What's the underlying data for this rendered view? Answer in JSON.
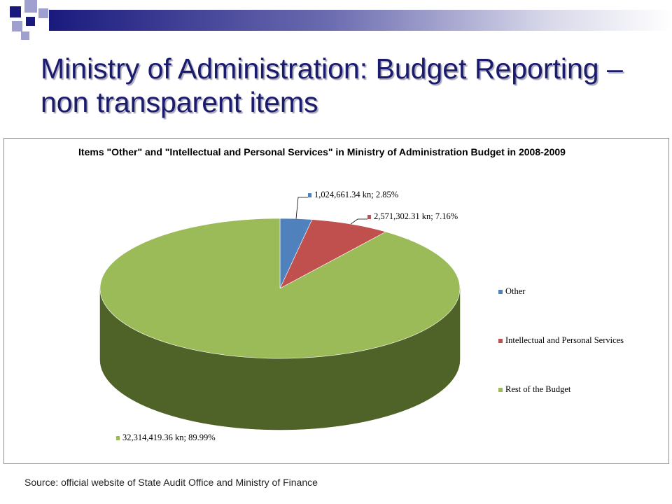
{
  "slide": {
    "title": "Ministry of Administration: Budget Reporting – non transparent items",
    "source": "Source: official website of State Audit Office and Ministry of Finance"
  },
  "colors": {
    "title": "#1b1b6e",
    "header_square_dark": "#1a1a7e",
    "header_square_light": "#9fa0cf",
    "header_bar_start": "#1a1a7e",
    "header_bar_end": "#ffffff"
  },
  "chart_data": {
    "type": "pie",
    "style": "3d",
    "title": "Items \"Other\" and \"Intellectual and Personal Services\" in Ministry of Administration Budget in 2008-2009",
    "unit": "kn",
    "series": [
      {
        "name": "Other",
        "value": 1024661.34,
        "percent": 2.85,
        "label": "1,024,661.34 kn; 2.85%",
        "color": "#4f81bd",
        "side_color": "#2b4c73"
      },
      {
        "name": "Intellectual and Personal Services",
        "value": 2571302.31,
        "percent": 7.16,
        "label": "2,571,302.31 kn; 7.16%",
        "color": "#c0504d",
        "side_color": "#7a2f2d"
      },
      {
        "name": "Rest of the Budget",
        "value": 32314419.36,
        "percent": 89.99,
        "label": "32,314,419.36 kn; 89.99%",
        "color": "#9bbb59",
        "side_color": "#4f6228"
      }
    ],
    "legend_position": "right"
  }
}
